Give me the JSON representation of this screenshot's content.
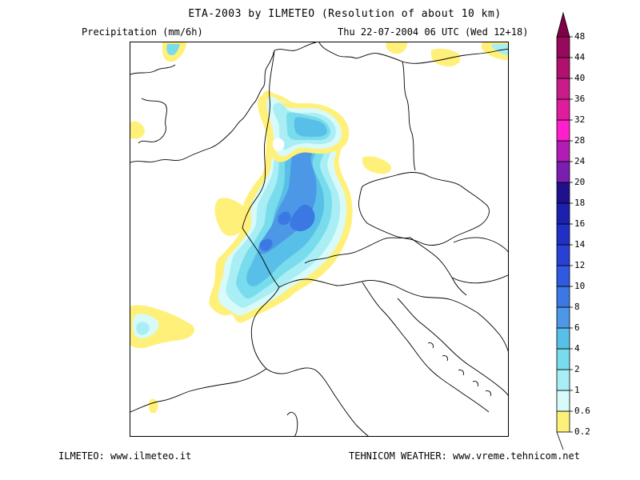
{
  "header": {
    "title": "ETA-2003 by ILMETEO (Resolution of about 10 km)",
    "variable": "Precipitation (mm/6h)",
    "valid_time": "Thu 22-07-2004 06 UTC (Wed 12+18)"
  },
  "footer": {
    "left": "ILMETEO: www.ilmeteo.it",
    "right": "TEHNICOM WEATHER: www.vreme.tehnicom.net"
  },
  "legend": {
    "levels": [
      {
        "label": "0.2",
        "color": "#fff07a"
      },
      {
        "label": "0.6",
        "color": "#d8fafa"
      },
      {
        "label": "1",
        "color": "#a8eef4"
      },
      {
        "label": "2",
        "color": "#78dcec"
      },
      {
        "label": "4",
        "color": "#58c0e8"
      },
      {
        "label": "6",
        "color": "#4c98e6"
      },
      {
        "label": "8",
        "color": "#3c78e4"
      },
      {
        "label": "10",
        "color": "#3058e0"
      },
      {
        "label": "12",
        "color": "#2840d4"
      },
      {
        "label": "14",
        "color": "#2030c4"
      },
      {
        "label": "16",
        "color": "#1c20ac"
      },
      {
        "label": "18",
        "color": "#20108c"
      },
      {
        "label": "20",
        "color": "#7a1eb0"
      },
      {
        "label": "24",
        "color": "#b01cb4"
      },
      {
        "label": "28",
        "color": "#ff1ecc"
      },
      {
        "label": "32",
        "color": "#de1c9c"
      },
      {
        "label": "36",
        "color": "#c81c88"
      },
      {
        "label": "40",
        "color": "#b01070"
      },
      {
        "label": "44",
        "color": "#98085c"
      },
      {
        "label": "48",
        "color": "#800048"
      }
    ]
  },
  "colors": {
    "border_line": "#000000",
    "background": "#ffffff"
  }
}
